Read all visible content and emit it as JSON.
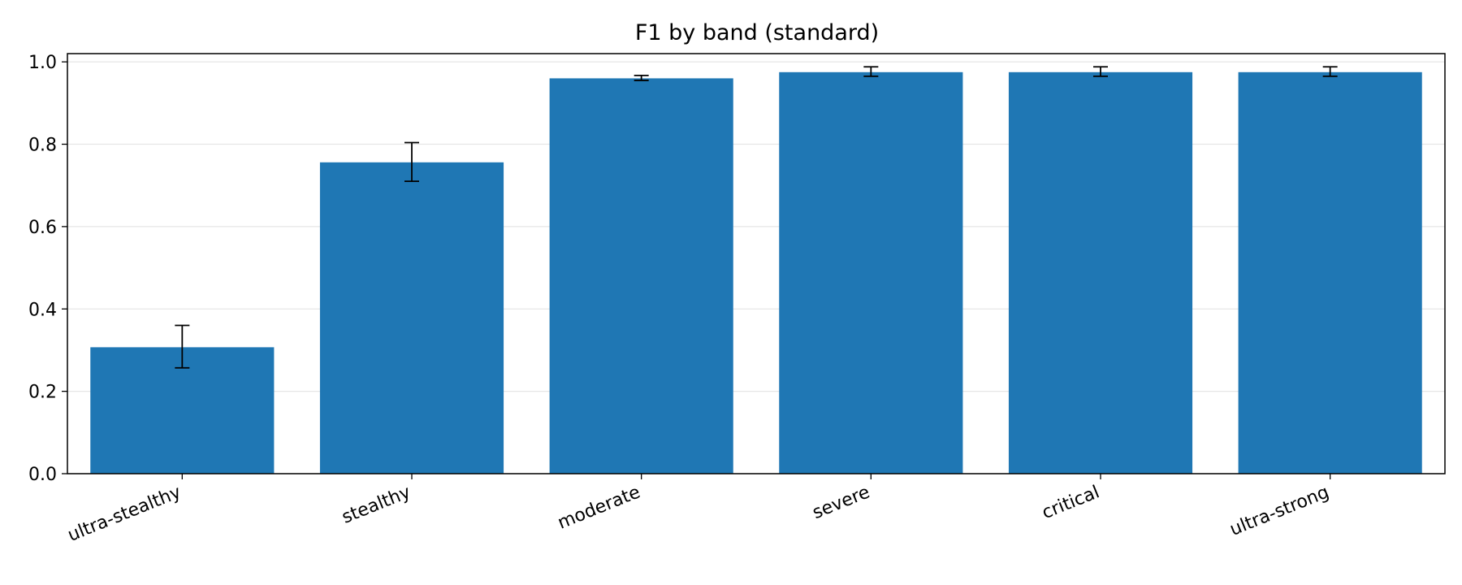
{
  "chart_data": {
    "type": "bar",
    "title": "F1 by band (standard)",
    "xlabel": "",
    "ylabel": "",
    "categories": [
      "ultra-stealthy",
      "stealthy",
      "moderate",
      "severe",
      "critical",
      "ultra-strong"
    ],
    "values": [
      0.307,
      0.756,
      0.96,
      0.975,
      0.975,
      0.975
    ],
    "error_low": [
      0.257,
      0.71,
      0.955,
      0.965,
      0.965,
      0.965
    ],
    "error_high": [
      0.36,
      0.804,
      0.967,
      0.988,
      0.988,
      0.988
    ],
    "ylim": [
      0,
      1.02
    ],
    "yticks": [
      "0.0",
      "0.2",
      "0.4",
      "0.6",
      "0.8",
      "1.0"
    ],
    "grid": true,
    "bar_color": "#1f77b4",
    "error_color": "#000000",
    "grid_color": "#e6e6e6"
  }
}
